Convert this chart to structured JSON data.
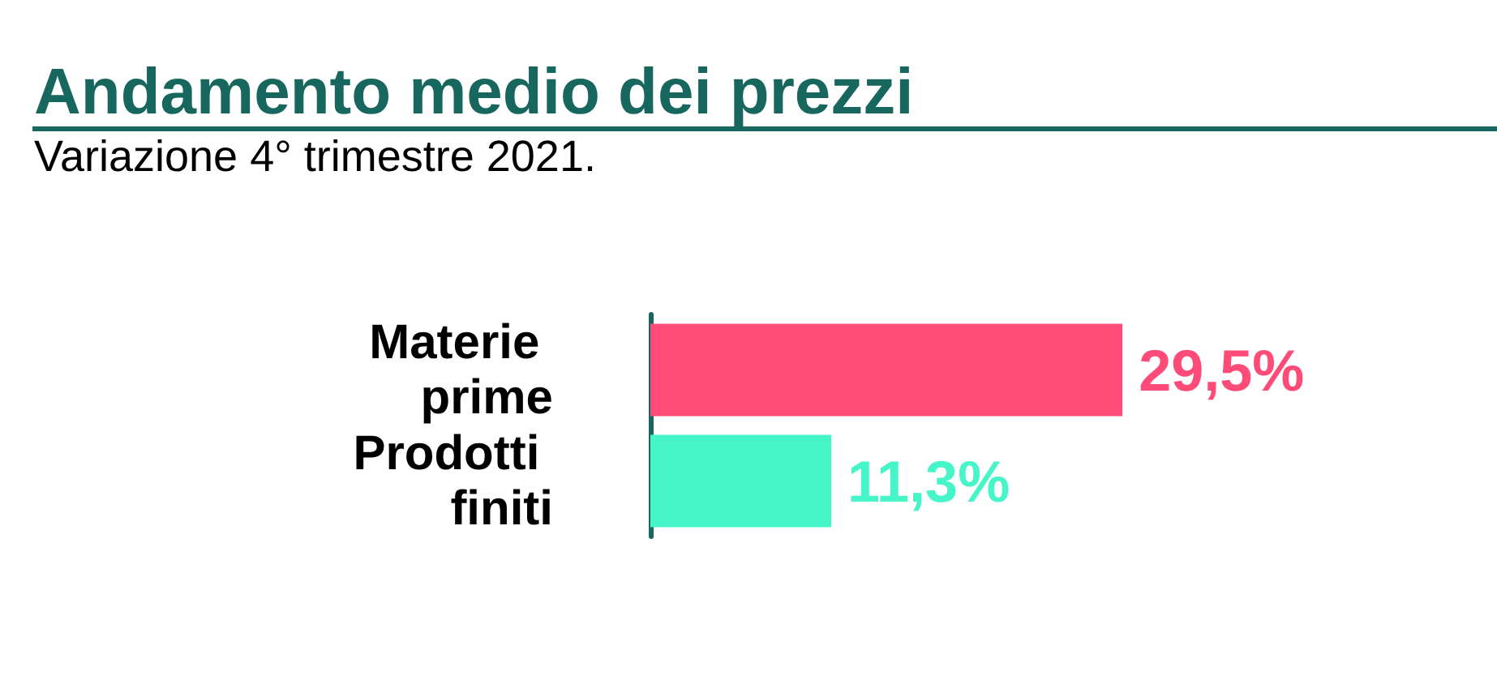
{
  "chart_data": {
    "type": "bar",
    "orientation": "horizontal",
    "title": "Andamento medio dei prezzi",
    "subtitle": "Variazione 4° trimestre 2021.",
    "categories": [
      "Materie prime",
      "Prodotti finiti"
    ],
    "values": [
      29.5,
      11.3
    ],
    "colors": [
      "#ff4b78",
      "#46f5c8"
    ],
    "value_labels": [
      "29,5%",
      "11,3%"
    ]
  }
}
